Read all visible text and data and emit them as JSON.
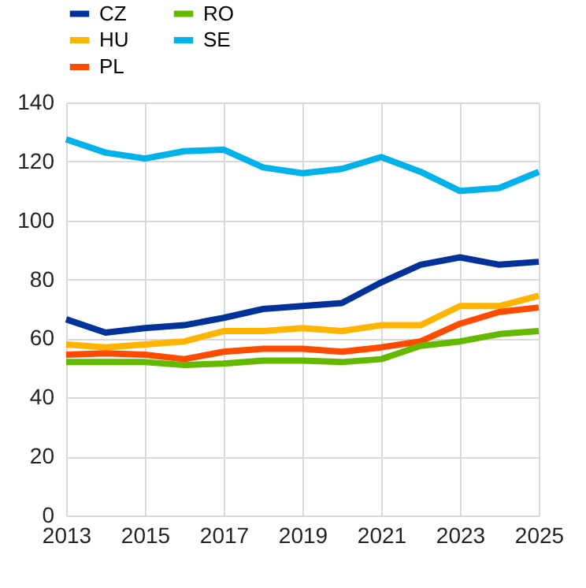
{
  "chart_data": {
    "type": "line",
    "x": [
      2013,
      2014,
      2015,
      2016,
      2017,
      2018,
      2019,
      2020,
      2021,
      2022,
      2023,
      2024,
      2025
    ],
    "series": [
      {
        "name": "CZ",
        "color": "#003299",
        "values": [
          66.5,
          62,
          63.5,
          64.5,
          67,
          70,
          71,
          72,
          79,
          85,
          87.5,
          85,
          86
        ]
      },
      {
        "name": "HU",
        "color": "#ffb400",
        "values": [
          58,
          57,
          58,
          59,
          62.5,
          62.5,
          63.5,
          62.5,
          64.5,
          64.5,
          71,
          71,
          74.5
        ]
      },
      {
        "name": "PL",
        "color": "#ff4b00",
        "values": [
          54.5,
          55,
          54.5,
          53,
          55.5,
          56.5,
          56.5,
          55.5,
          57,
          59,
          65,
          69,
          70.5
        ]
      },
      {
        "name": "RO",
        "color": "#65b800",
        "values": [
          52,
          52,
          52,
          51,
          51.5,
          52.5,
          52.5,
          52,
          53,
          57.5,
          59,
          61.5,
          62.5
        ]
      },
      {
        "name": "SE",
        "color": "#00b1ea",
        "values": [
          127.5,
          123,
          121,
          123.5,
          124,
          118,
          116,
          117.5,
          121.5,
          116.5,
          110,
          111,
          116.5
        ]
      }
    ],
    "xlim": [
      2013,
      2025
    ],
    "xticks": [
      2013,
      2015,
      2017,
      2019,
      2021,
      2023,
      2025
    ],
    "ylim": [
      0,
      140
    ],
    "yticks": [
      0,
      20,
      40,
      60,
      80,
      100,
      120,
      140
    ],
    "grid": true,
    "legend": "top left",
    "marker": "none",
    "line_style": "solid"
  }
}
